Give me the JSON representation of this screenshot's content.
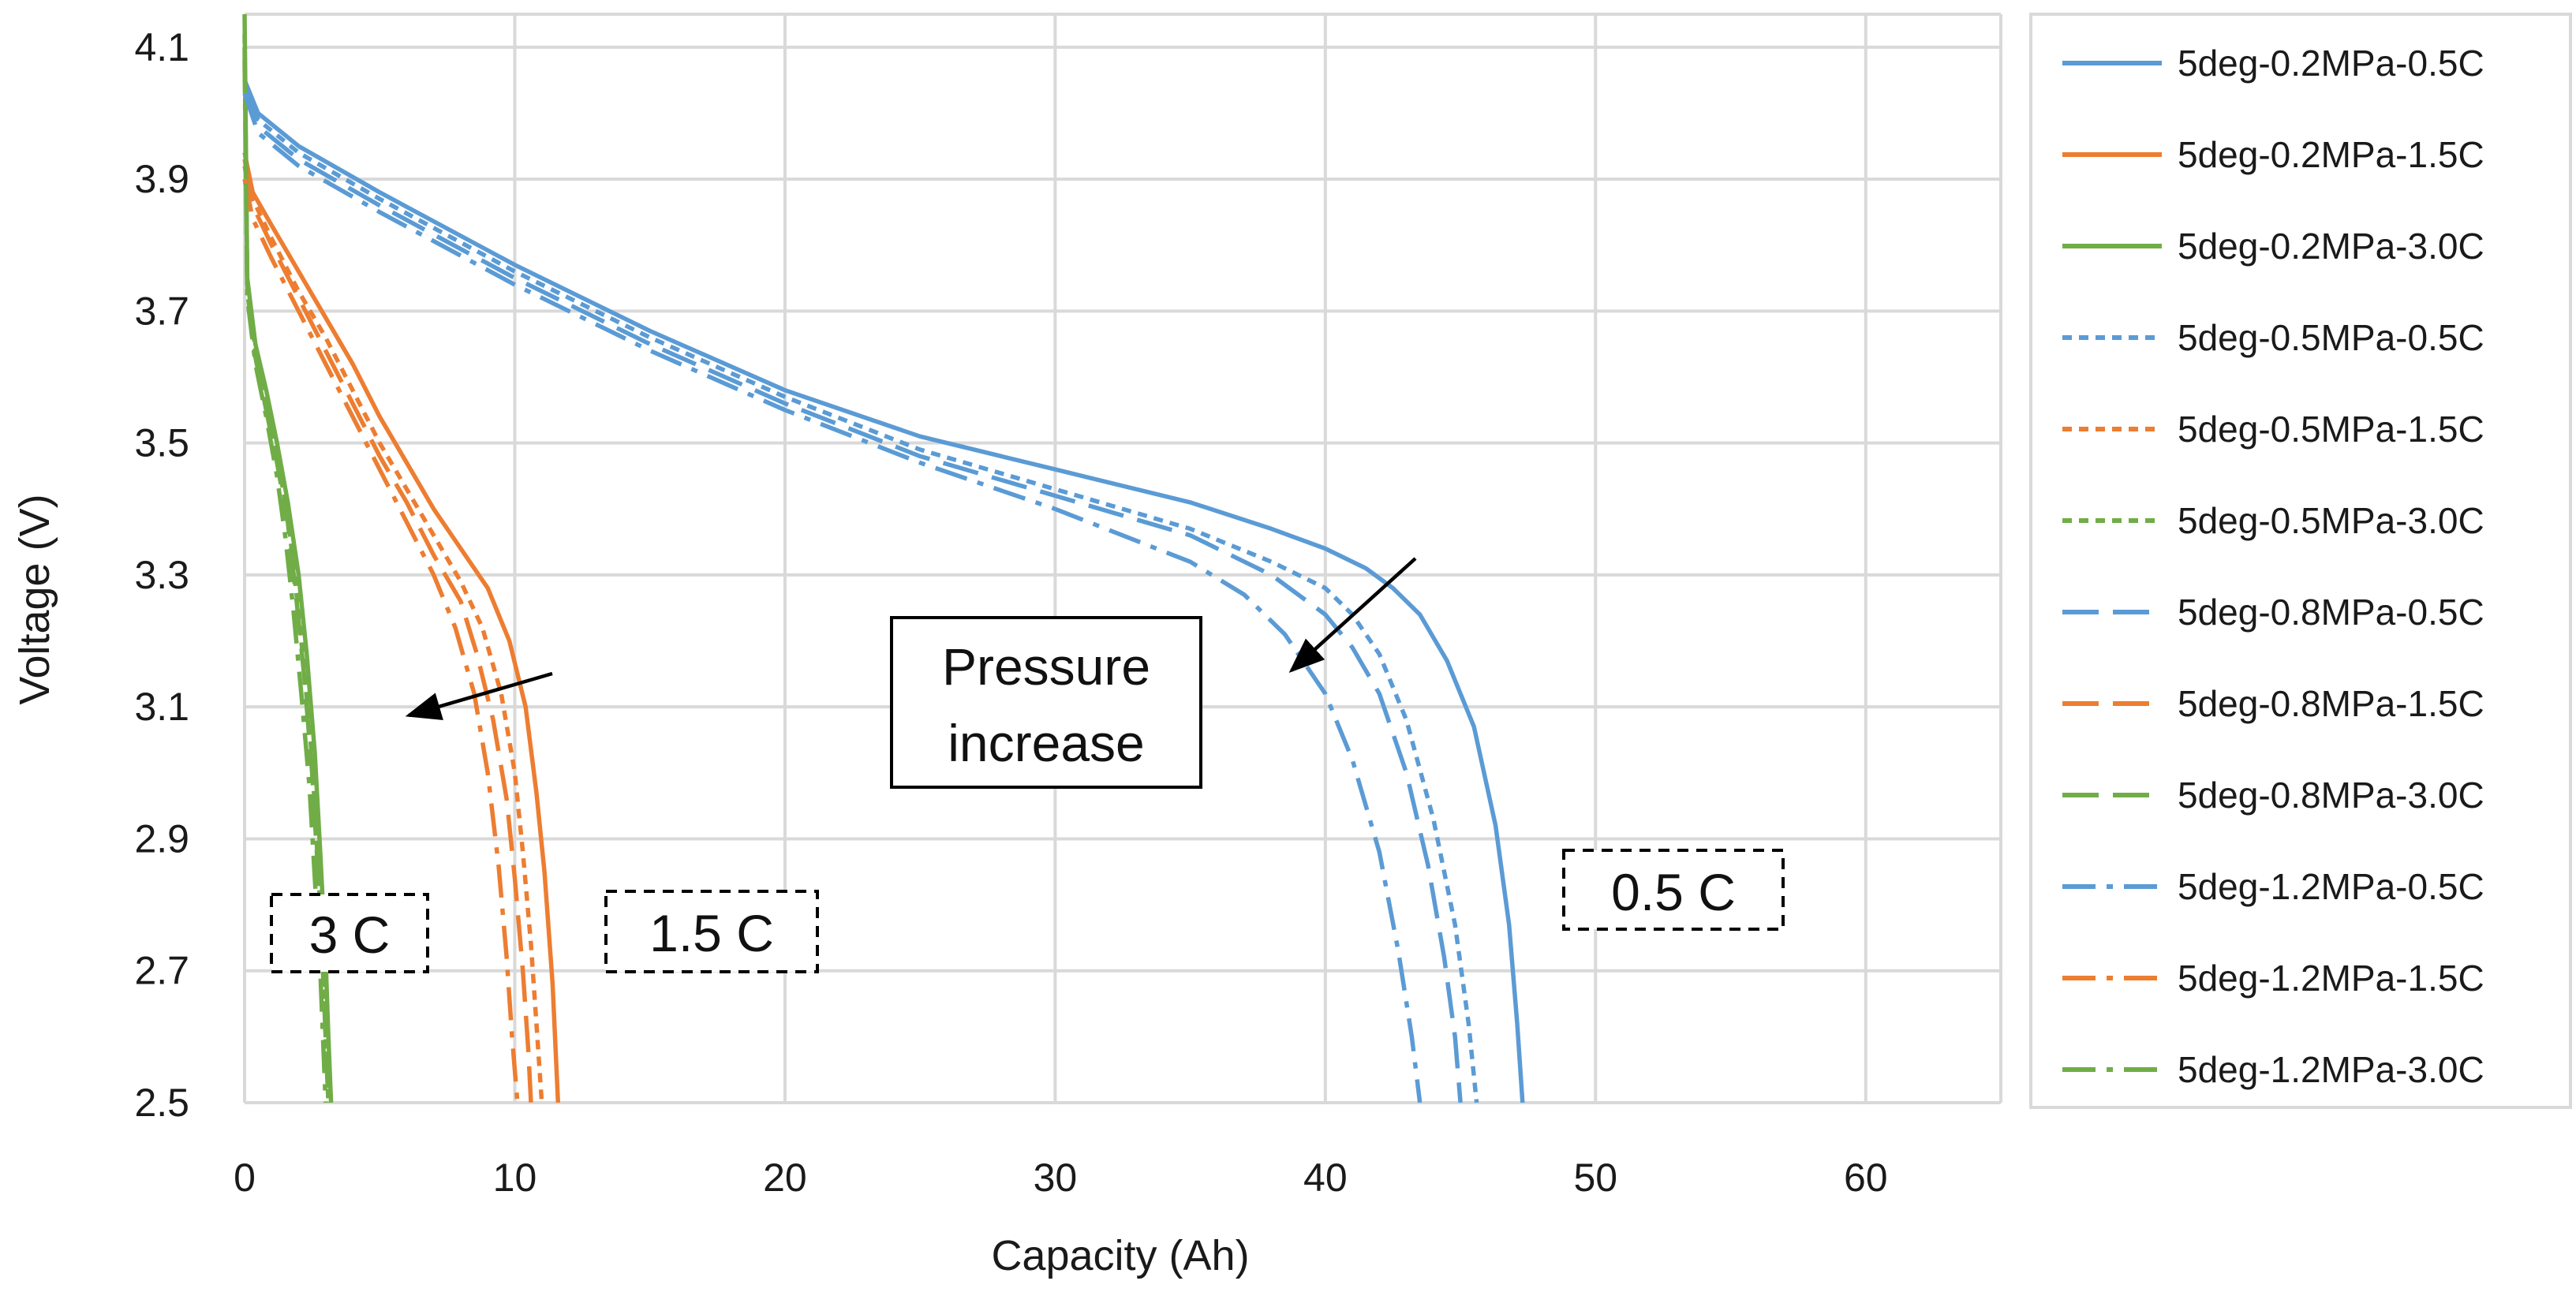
{
  "chart_data": {
    "type": "line",
    "title": "",
    "xlabel": "Capacity (Ah)",
    "ylabel": "Voltage (V)",
    "xlim": [
      0,
      65
    ],
    "ylim": [
      2.5,
      4.15
    ],
    "xticks": [
      0,
      10,
      20,
      30,
      40,
      50,
      60
    ],
    "yticks": [
      2.5,
      2.7,
      2.9,
      3.1,
      3.3,
      3.5,
      3.7,
      3.9,
      4.1
    ],
    "xtick_labels": [
      "0",
      "10",
      "20",
      "30",
      "40",
      "50",
      "60"
    ],
    "ytick_labels": [
      "2.5",
      "2.7",
      "2.9",
      "3.1",
      "3.3",
      "3.5",
      "3.7",
      "3.9",
      "4.1"
    ],
    "grid": true,
    "legend_position": "right",
    "colors": {
      "c05": "#5b9bd5",
      "c15": "#ed7d31",
      "c30": "#70ad47",
      "grid": "#d9d9d9",
      "arrow": "#000000"
    },
    "series": [
      {
        "name": "5deg-0.2MPa-0.5C",
        "color": "#5b9bd5",
        "dash": "solid",
        "x": [
          0,
          0.5,
          2,
          5,
          10,
          15,
          20,
          25,
          30,
          35,
          38,
          40,
          41.5,
          42.5,
          43.5,
          44.5,
          45.5,
          46.3,
          46.8,
          47.1,
          47.3
        ],
        "y": [
          4.05,
          4.0,
          3.95,
          3.88,
          3.77,
          3.67,
          3.58,
          3.51,
          3.46,
          3.41,
          3.37,
          3.34,
          3.31,
          3.28,
          3.24,
          3.17,
          3.07,
          2.92,
          2.77,
          2.62,
          2.5
        ]
      },
      {
        "name": "5deg-0.2MPa-1.5C",
        "color": "#ed7d31",
        "dash": "solid",
        "x": [
          0,
          0.3,
          1,
          2,
          3,
          4,
          5,
          6,
          7,
          8,
          9,
          9.8,
          10.4,
          10.8,
          11.1,
          11.4,
          11.6
        ],
        "y": [
          3.94,
          3.88,
          3.83,
          3.76,
          3.69,
          3.62,
          3.54,
          3.47,
          3.4,
          3.34,
          3.28,
          3.2,
          3.1,
          2.97,
          2.85,
          2.68,
          2.5
        ]
      },
      {
        "name": "5deg-0.2MPa-3.0C",
        "color": "#70ad47",
        "dash": "solid",
        "x": [
          0,
          0.1,
          0.4,
          0.8,
          1.2,
          1.6,
          2.0,
          2.3,
          2.6,
          2.8,
          3.0,
          3.1,
          3.2
        ],
        "y": [
          4.15,
          3.75,
          3.65,
          3.58,
          3.5,
          3.41,
          3.3,
          3.18,
          3.03,
          2.88,
          2.72,
          2.6,
          2.5
        ]
      },
      {
        "name": "5deg-0.5MPa-0.5C",
        "color": "#5b9bd5",
        "dash": "short-dash",
        "x": [
          0,
          0.5,
          2,
          5,
          10,
          15,
          20,
          25,
          30,
          35,
          38,
          40,
          41,
          42,
          43,
          44,
          44.8,
          45.3,
          45.6
        ],
        "y": [
          4.05,
          3.99,
          3.94,
          3.87,
          3.76,
          3.66,
          3.57,
          3.49,
          3.43,
          3.37,
          3.32,
          3.28,
          3.24,
          3.18,
          3.08,
          2.93,
          2.77,
          2.62,
          2.5
        ]
      },
      {
        "name": "5deg-0.5MPa-1.5C",
        "color": "#ed7d31",
        "dash": "short-dash",
        "x": [
          0,
          0.3,
          1,
          2,
          3,
          4,
          5,
          6,
          7,
          8,
          8.8,
          9.5,
          10,
          10.3,
          10.6,
          10.8,
          11.0
        ],
        "y": [
          3.93,
          3.87,
          3.81,
          3.73,
          3.66,
          3.58,
          3.5,
          3.43,
          3.36,
          3.29,
          3.22,
          3.12,
          3.0,
          2.88,
          2.74,
          2.62,
          2.5
        ]
      },
      {
        "name": "5deg-0.5MPa-3.0C",
        "color": "#70ad47",
        "dash": "short-dash",
        "x": [
          0,
          0.1,
          0.4,
          0.8,
          1.2,
          1.6,
          1.9,
          2.2,
          2.5,
          2.7,
          2.9,
          3.0,
          3.1
        ],
        "y": [
          4.12,
          3.74,
          3.64,
          3.56,
          3.48,
          3.39,
          3.28,
          3.16,
          3.02,
          2.87,
          2.72,
          2.6,
          2.5
        ]
      },
      {
        "name": "5deg-0.8MPa-0.5C",
        "color": "#5b9bd5",
        "dash": "long-dash",
        "x": [
          0,
          0.5,
          2,
          5,
          10,
          15,
          20,
          25,
          30,
          35,
          38,
          40,
          41,
          42,
          43,
          43.8,
          44.4,
          44.8,
          45.0
        ],
        "y": [
          4.04,
          3.98,
          3.93,
          3.86,
          3.75,
          3.65,
          3.56,
          3.48,
          3.42,
          3.36,
          3.3,
          3.24,
          3.19,
          3.12,
          3.0,
          2.86,
          2.72,
          2.6,
          2.5
        ]
      },
      {
        "name": "5deg-0.8MPa-1.5C",
        "color": "#ed7d31",
        "dash": "long-dash",
        "x": [
          0,
          0.3,
          1,
          2,
          3,
          4,
          5,
          6,
          7,
          8,
          8.6,
          9.2,
          9.7,
          10.0,
          10.3,
          10.5,
          10.6
        ],
        "y": [
          3.92,
          3.86,
          3.8,
          3.72,
          3.64,
          3.56,
          3.48,
          3.41,
          3.33,
          3.26,
          3.18,
          3.08,
          2.96,
          2.84,
          2.7,
          2.58,
          2.5
        ]
      },
      {
        "name": "5deg-0.8MPa-3.0C",
        "color": "#70ad47",
        "dash": "long-dash",
        "x": [
          0,
          0.1,
          0.4,
          0.8,
          1.2,
          1.6,
          1.9,
          2.2,
          2.5,
          2.7,
          2.9,
          3.0,
          3.1
        ],
        "y": [
          4.1,
          3.73,
          3.63,
          3.55,
          3.47,
          3.38,
          3.27,
          3.15,
          3.0,
          2.86,
          2.7,
          2.6,
          2.5
        ]
      },
      {
        "name": "5deg-1.2MPa-0.5C",
        "color": "#5b9bd5",
        "dash": "dash-dot",
        "x": [
          0,
          0.5,
          2,
          5,
          10,
          15,
          20,
          25,
          30,
          35,
          37,
          38.5,
          40,
          41,
          42,
          42.7,
          43.2,
          43.5
        ],
        "y": [
          4.03,
          3.97,
          3.92,
          3.85,
          3.74,
          3.64,
          3.55,
          3.47,
          3.4,
          3.32,
          3.27,
          3.21,
          3.12,
          3.02,
          2.88,
          2.73,
          2.6,
          2.5
        ]
      },
      {
        "name": "5deg-1.2MPa-1.5C",
        "color": "#ed7d31",
        "dash": "dash-dot",
        "x": [
          0,
          0.3,
          1,
          2,
          3,
          4,
          5,
          6,
          7,
          7.8,
          8.5,
          9.0,
          9.4,
          9.7,
          9.9,
          10.1
        ],
        "y": [
          3.9,
          3.84,
          3.78,
          3.7,
          3.62,
          3.54,
          3.46,
          3.38,
          3.3,
          3.22,
          3.12,
          3.0,
          2.86,
          2.72,
          2.6,
          2.5
        ]
      },
      {
        "name": "5deg-1.2MPa-3.0C",
        "color": "#70ad47",
        "dash": "dash-dot",
        "x": [
          0,
          0.1,
          0.4,
          0.8,
          1.2,
          1.5,
          1.8,
          2.1,
          2.4,
          2.6,
          2.8,
          2.9,
          3.0
        ],
        "y": [
          4.08,
          3.72,
          3.62,
          3.54,
          3.45,
          3.36,
          3.25,
          3.12,
          2.98,
          2.84,
          2.7,
          2.6,
          2.5
        ]
      }
    ],
    "annotations": {
      "pressure_line1": "Pressure",
      "pressure_line2": "increase",
      "label_3c": "3 C",
      "label_15c": "1.5 C",
      "label_05c": "0.5 C"
    }
  }
}
